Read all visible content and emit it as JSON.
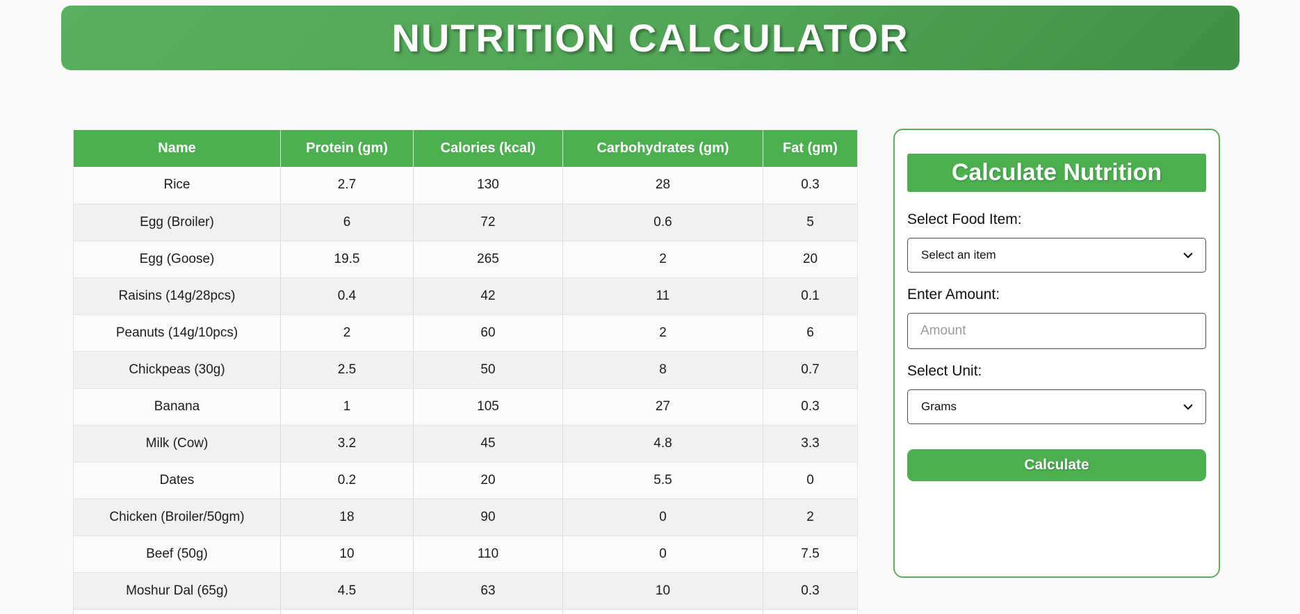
{
  "page": {
    "title": "NUTRITION CALCULATOR"
  },
  "colors": {
    "accent_green": "#4caf50",
    "banner_gradient_start": "#5ab05e",
    "banner_gradient_end": "#3f8f44",
    "panel_border_green": "#60ab63",
    "row_odd": "#fbfbfb",
    "row_even": "#f1f1f1"
  },
  "table": {
    "headers": [
      "Name",
      "Protein (gm)",
      "Calories (kcal)",
      "Carbohydrates (gm)",
      "Fat (gm)"
    ],
    "rows": [
      [
        "Rice",
        "2.7",
        "130",
        "28",
        "0.3"
      ],
      [
        "Egg (Broiler)",
        "6",
        "72",
        "0.6",
        "5"
      ],
      [
        "Egg (Goose)",
        "19.5",
        "265",
        "2",
        "20"
      ],
      [
        "Raisins (14g/28pcs)",
        "0.4",
        "42",
        "11",
        "0.1"
      ],
      [
        "Peanuts (14g/10pcs)",
        "2",
        "60",
        "2",
        "6"
      ],
      [
        "Chickpeas (30g)",
        "2.5",
        "50",
        "8",
        "0.7"
      ],
      [
        "Banana",
        "1",
        "105",
        "27",
        "0.3"
      ],
      [
        "Milk (Cow)",
        "3.2",
        "45",
        "4.8",
        "3.3"
      ],
      [
        "Dates",
        "0.2",
        "20",
        "5.5",
        "0"
      ],
      [
        "Chicken (Broiler/50gm)",
        "18",
        "90",
        "0",
        "2"
      ],
      [
        "Beef (50g)",
        "10",
        "110",
        "0",
        "7.5"
      ],
      [
        "Moshur Dal (65g)",
        "4.5",
        "63",
        "10",
        "0.3"
      ]
    ]
  },
  "calculator": {
    "title": "Calculate Nutrition",
    "food_label": "Select Food Item:",
    "food_value": "Select an item",
    "amount_label": "Enter Amount:",
    "amount_placeholder": "Amount",
    "unit_label": "Select Unit:",
    "unit_value": "Grams",
    "button_label": "Calculate"
  }
}
